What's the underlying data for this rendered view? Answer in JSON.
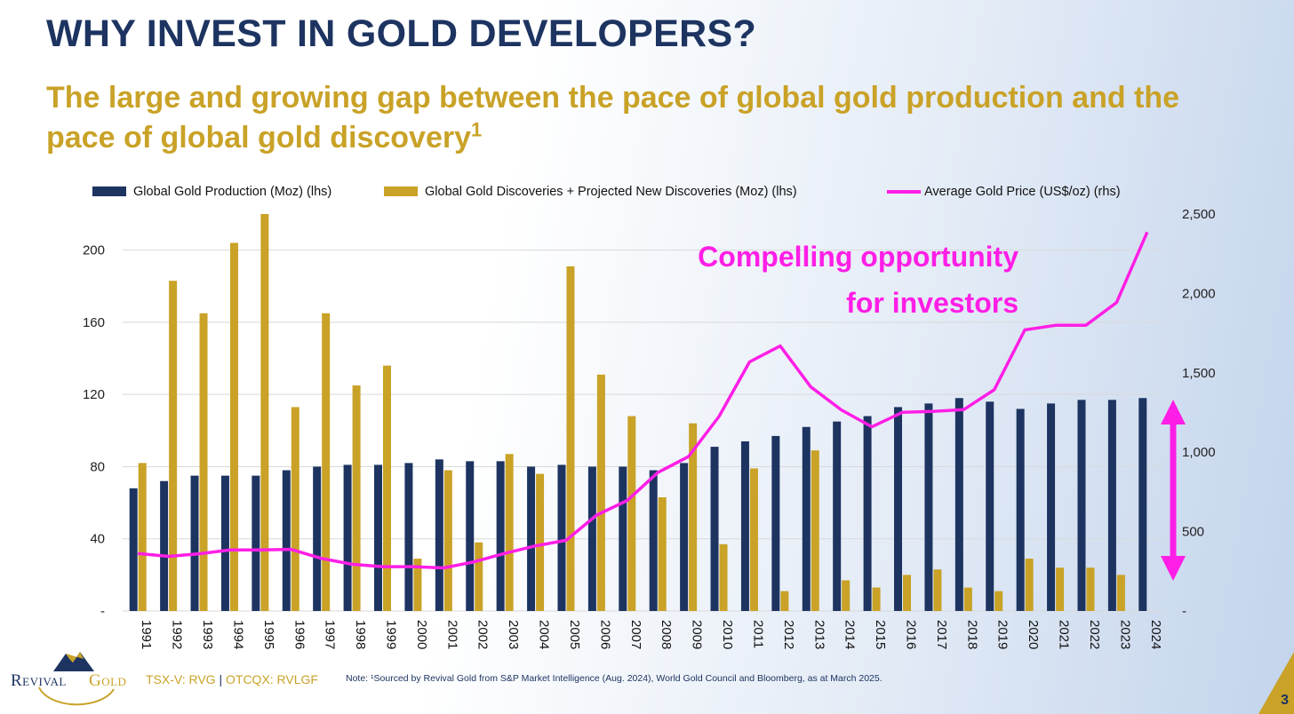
{
  "slide": {
    "title": "WHY INVEST IN GOLD DEVELOPERS?",
    "subtitle": "The large and growing gap between the pace of global gold production and the pace of global gold discovery",
    "subtitle_sup": "1",
    "tickers_left": "TSX-V: RVG",
    "tickers_sep": " | ",
    "tickers_right": "OTCQX: RVLGF",
    "note": "Note: ¹Sourced by Revival Gold  from S&P Market Intelligence (Aug. 2024), World Gold Council and Bloomberg, as at March 2025.",
    "page_number": "3",
    "logo_text_1": "Revival",
    "logo_text_2": "Gold",
    "callout_line1": "Compelling opportunity",
    "callout_line2": "for investors"
  },
  "colors": {
    "navy": "#1d3461",
    "gold": "#c9a227",
    "magenta": "#ff1ee6",
    "grid": "#d9d9d9"
  },
  "chart_data": {
    "type": "bar",
    "categories": [
      "1991",
      "1992",
      "1993",
      "1994",
      "1995",
      "1996",
      "1997",
      "1998",
      "1999",
      "2000",
      "2001",
      "2002",
      "2003",
      "2004",
      "2005",
      "2006",
      "2007",
      "2008",
      "2009",
      "2010",
      "2011",
      "2012",
      "2013",
      "2014",
      "2015",
      "2016",
      "2017",
      "2018",
      "2019",
      "2020",
      "2021",
      "2022",
      "2023",
      "2024"
    ],
    "series": [
      {
        "name": "Global Gold Production (Moz) (lhs)",
        "kind": "bar",
        "axis": "left",
        "values": [
          68,
          72,
          75,
          75,
          75,
          78,
          80,
          81,
          81,
          82,
          84,
          83,
          83,
          80,
          81,
          80,
          80,
          78,
          82,
          91,
          94,
          97,
          102,
          105,
          108,
          113,
          115,
          118,
          116,
          112,
          115,
          117,
          117,
          118
        ]
      },
      {
        "name": "Global Gold Discoveries + Projected New Discoveries (Moz) (lhs)",
        "kind": "bar",
        "axis": "left",
        "values": [
          82,
          183,
          165,
          204,
          220,
          113,
          165,
          125,
          136,
          29,
          78,
          38,
          87,
          76,
          191,
          131,
          108,
          63,
          104,
          37,
          79,
          11,
          89,
          17,
          13,
          20,
          23,
          13,
          11,
          29,
          24,
          24,
          20,
          0
        ]
      },
      {
        "name": "Average Gold Price (US$/oz) (rhs)",
        "kind": "line",
        "axis": "right",
        "values": [
          362,
          344,
          360,
          384,
          384,
          388,
          331,
          294,
          279,
          279,
          271,
          310,
          363,
          410,
          445,
          604,
          696,
          872,
          972,
          1225,
          1569,
          1669,
          1411,
          1266,
          1160,
          1251,
          1257,
          1268,
          1393,
          1770,
          1799,
          1800,
          1943,
          2386
        ]
      }
    ],
    "left_axis": {
      "ylim": [
        0,
        220
      ],
      "ticks": [
        0,
        40,
        80,
        120,
        160,
        200
      ],
      "tick_labels": [
        "-",
        "40",
        "80",
        "120",
        "160",
        "200"
      ]
    },
    "right_axis": {
      "ylim": [
        0,
        2500
      ],
      "ticks": [
        0,
        500,
        1000,
        1500,
        2000,
        2500
      ],
      "tick_labels": [
        "-",
        "500",
        "1,000",
        "1,500",
        "2,000",
        "2,500"
      ]
    },
    "legend_position": "top",
    "grid": true,
    "annotation": "Compelling opportunity for investors"
  }
}
